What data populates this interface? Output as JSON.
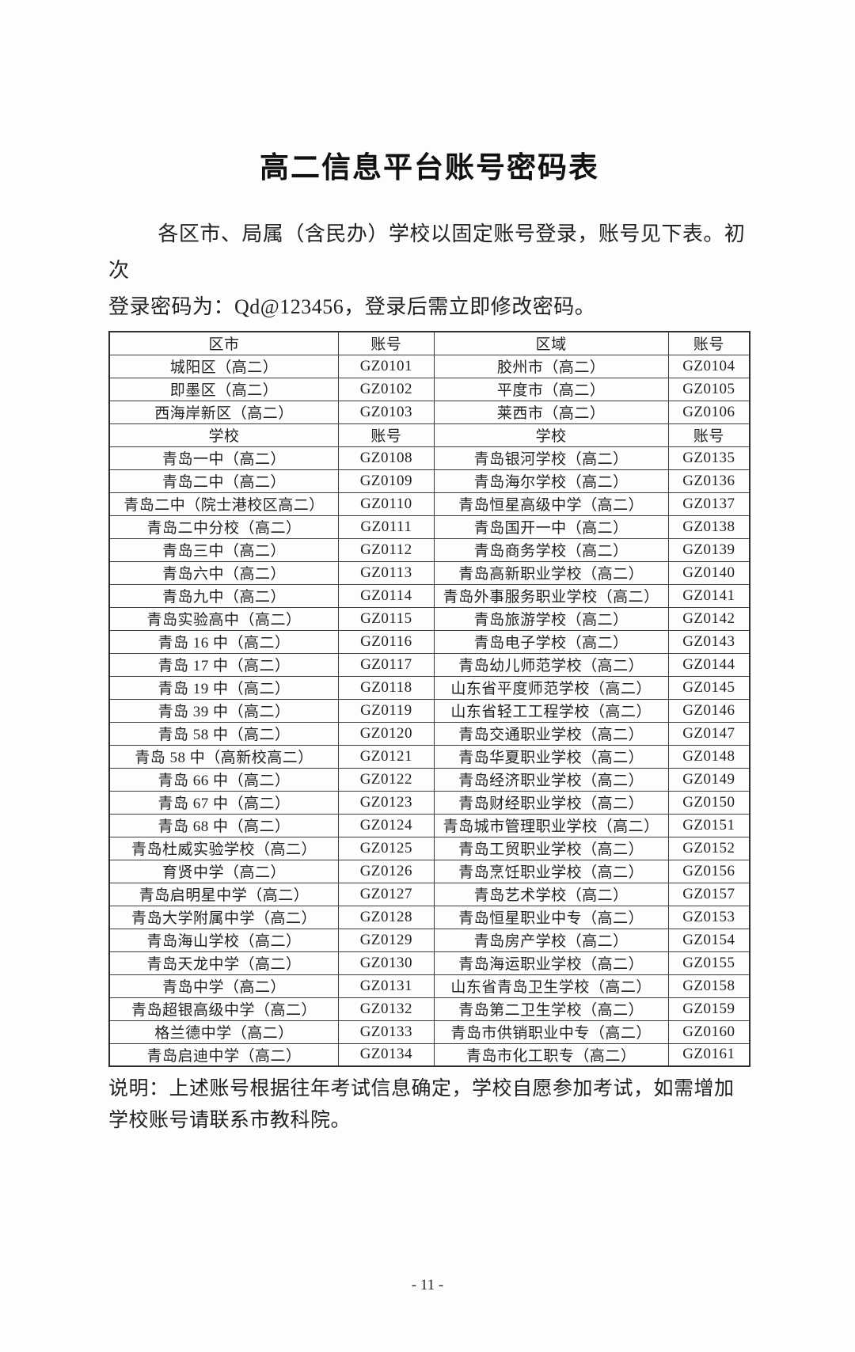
{
  "page": {
    "title": "高二信息平台账号密码表",
    "intro_lines": [
      "各区市、局属（含民办）学校以固定账号登录，账号见下表。初次",
      "登录密码为：Qd@123456，登录后需立即修改密码。"
    ],
    "note_lines": [
      "说明：上述账号根据往年考试信息确定，学校自愿参加考试，如需增加",
      "学校账号请联系市教科院。"
    ],
    "page_number": "- 11 -"
  },
  "table": {
    "sections": [
      {
        "header": [
          "区市",
          "账号",
          "区域",
          "账号"
        ],
        "rows": [
          [
            "城阳区（高二）",
            "GZ0101",
            "胶州市（高二）",
            "GZ0104"
          ],
          [
            "即墨区（高二）",
            "GZ0102",
            "平度市（高二）",
            "GZ0105"
          ],
          [
            "西海岸新区（高二）",
            "GZ0103",
            "莱西市（高二）",
            "GZ0106"
          ]
        ]
      },
      {
        "header": [
          "学校",
          "账号",
          "学校",
          "账号"
        ],
        "rows": [
          [
            "青岛一中（高二）",
            "GZ0108",
            "青岛银河学校（高二）",
            "GZ0135"
          ],
          [
            "青岛二中（高二）",
            "GZ0109",
            "青岛海尔学校（高二）",
            "GZ0136"
          ],
          [
            "青岛二中（院士港校区高二）",
            "GZ0110",
            "青岛恒星高级中学（高二）",
            "GZ0137"
          ],
          [
            "青岛二中分校（高二）",
            "GZ0111",
            "青岛国开一中（高二）",
            "GZ0138"
          ],
          [
            "青岛三中（高二）",
            "GZ0112",
            "青岛商务学校（高二）",
            "GZ0139"
          ],
          [
            "青岛六中（高二）",
            "GZ0113",
            "青岛高新职业学校（高二）",
            "GZ0140"
          ],
          [
            "青岛九中（高二）",
            "GZ0114",
            "青岛外事服务职业学校（高二）",
            "GZ0141"
          ],
          [
            "青岛实验高中（高二）",
            "GZ0115",
            "青岛旅游学校（高二）",
            "GZ0142"
          ],
          [
            "青岛 16 中（高二）",
            "GZ0116",
            "青岛电子学校（高二）",
            "GZ0143"
          ],
          [
            "青岛 17 中（高二）",
            "GZ0117",
            "青岛幼儿师范学校（高二）",
            "GZ0144"
          ],
          [
            "青岛 19 中（高二）",
            "GZ0118",
            "山东省平度师范学校（高二）",
            "GZ0145"
          ],
          [
            "青岛 39 中（高二）",
            "GZ0119",
            "山东省轻工工程学校（高二）",
            "GZ0146"
          ],
          [
            "青岛 58 中（高二）",
            "GZ0120",
            "青岛交通职业学校（高二）",
            "GZ0147"
          ],
          [
            "青岛 58 中（高新校高二）",
            "GZ0121",
            "青岛华夏职业学校（高二）",
            "GZ0148"
          ],
          [
            "青岛 66 中（高二）",
            "GZ0122",
            "青岛经济职业学校（高二）",
            "GZ0149"
          ],
          [
            "青岛 67 中（高二）",
            "GZ0123",
            "青岛财经职业学校（高二）",
            "GZ0150"
          ],
          [
            "青岛 68 中（高二）",
            "GZ0124",
            "青岛城市管理职业学校（高二）",
            "GZ0151"
          ],
          [
            "青岛杜威实验学校（高二）",
            "GZ0125",
            "青岛工贸职业学校（高二）",
            "GZ0152"
          ],
          [
            "育贤中学（高二）",
            "GZ0126",
            "青岛烹饪职业学校（高二）",
            "GZ0156"
          ],
          [
            "青岛启明星中学（高二）",
            "GZ0127",
            "青岛艺术学校（高二）",
            "GZ0157"
          ],
          [
            "青岛大学附属中学（高二）",
            "GZ0128",
            "青岛恒星职业中专（高二）",
            "GZ0153"
          ],
          [
            "青岛海山学校（高二）",
            "GZ0129",
            "青岛房产学校（高二）",
            "GZ0154"
          ],
          [
            "青岛天龙中学（高二）",
            "GZ0130",
            "青岛海运职业学校（高二）",
            "GZ0155"
          ],
          [
            "青岛中学（高二）",
            "GZ0131",
            "山东省青岛卫生学校（高二）",
            "GZ0158"
          ],
          [
            "青岛超银高级中学（高二）",
            "GZ0132",
            "青岛第二卫生学校（高二）",
            "GZ0159"
          ],
          [
            "格兰德中学（高二）",
            "GZ0133",
            "青岛市供销职业中专（高二）",
            "GZ0160"
          ],
          [
            "青岛启迪中学（高二）",
            "GZ0134",
            "青岛市化工职专（高二）",
            "GZ0161"
          ]
        ]
      }
    ]
  }
}
